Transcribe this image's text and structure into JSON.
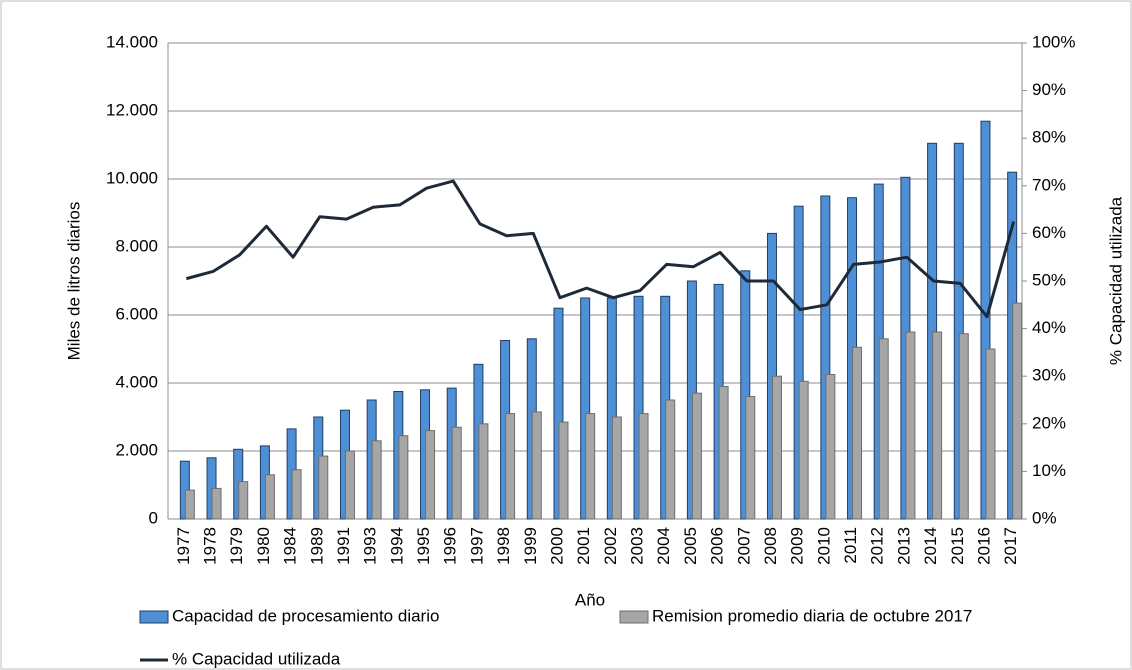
{
  "chart_data": {
    "type": "bar_line",
    "x_label": "Año",
    "y_label": "Miles de litros diarios",
    "y2_label": "% Capacidad utilizada",
    "categories": [
      "1977",
      "1978",
      "1979",
      "1980",
      "1984",
      "1989",
      "1991",
      "1993",
      "1994",
      "1995",
      "1996",
      "1997",
      "1998",
      "1999",
      "2000",
      "2001",
      "2002",
      "2003",
      "2004",
      "2005",
      "2006",
      "2007",
      "2008",
      "2009",
      "2010",
      "2011",
      "2012",
      "2013",
      "2014",
      "2015",
      "2016",
      "2017"
    ],
    "series": [
      {
        "name": "Capacidad  de procesamiento diario",
        "type": "bar",
        "color": "#4f8fd6",
        "values": [
          1700,
          1800,
          2050,
          2150,
          2650,
          3000,
          3200,
          3500,
          3750,
          3800,
          3850,
          4550,
          5250,
          5300,
          6200,
          6500,
          6500,
          6550,
          6550,
          7000,
          6900,
          7300,
          8400,
          9200,
          9500,
          9450,
          9850,
          10050,
          11050,
          11050,
          11700,
          10200
        ]
      },
      {
        "name": "Remision promedio diaria de octubre 2017",
        "type": "bar",
        "color": "#a6a6a6",
        "values": [
          850,
          900,
          1100,
          1300,
          1450,
          1850,
          2000,
          2300,
          2450,
          2600,
          2700,
          2800,
          3100,
          3150,
          2850,
          3100,
          3000,
          3100,
          3500,
          3700,
          3900,
          3600,
          4200,
          4050,
          4250,
          5050,
          5300,
          5500,
          5500,
          5450,
          5000,
          6350
        ]
      },
      {
        "name": "% Capacidad utilizada",
        "type": "line",
        "axis": "y2",
        "color": "#1f2a38",
        "values": [
          50.5,
          52,
          55.5,
          61.5,
          55,
          63.5,
          63,
          65.5,
          66,
          69.5,
          71,
          62,
          59.5,
          60,
          46.5,
          48.5,
          46.5,
          48,
          53.5,
          53,
          56,
          50,
          50,
          44,
          45,
          53.5,
          54,
          55,
          50,
          49.5,
          42.5,
          62.5
        ]
      }
    ],
    "ylim": [
      0,
      14000
    ],
    "yticks": [
      0,
      {
        "value": 2000,
        "label": "2.000"
      },
      {
        "value": 4000,
        "label": "4.000"
      },
      {
        "value": 6000,
        "label": "6.000"
      },
      {
        "value": 8000,
        "label": "8.000"
      },
      {
        "value": 10000,
        "label": "10.000"
      },
      {
        "value": 12000,
        "label": "12.000"
      },
      {
        "value": 14000,
        "label": "14.000"
      }
    ],
    "y2lim": [
      0,
      100
    ],
    "y2ticks": [
      {
        "value": 0,
        "label": "0%"
      },
      {
        "value": 10,
        "label": "10%"
      },
      {
        "value": 20,
        "label": "20%"
      },
      {
        "value": 30,
        "label": "30%"
      },
      {
        "value": 40,
        "label": "40%"
      },
      {
        "value": 50,
        "label": "50%"
      },
      {
        "value": 60,
        "label": "60%"
      },
      {
        "value": 70,
        "label": "70%"
      },
      {
        "value": 80,
        "label": "80%"
      },
      {
        "value": 90,
        "label": "90%"
      },
      {
        "value": 100,
        "label": "100%"
      }
    ],
    "grid": true
  }
}
